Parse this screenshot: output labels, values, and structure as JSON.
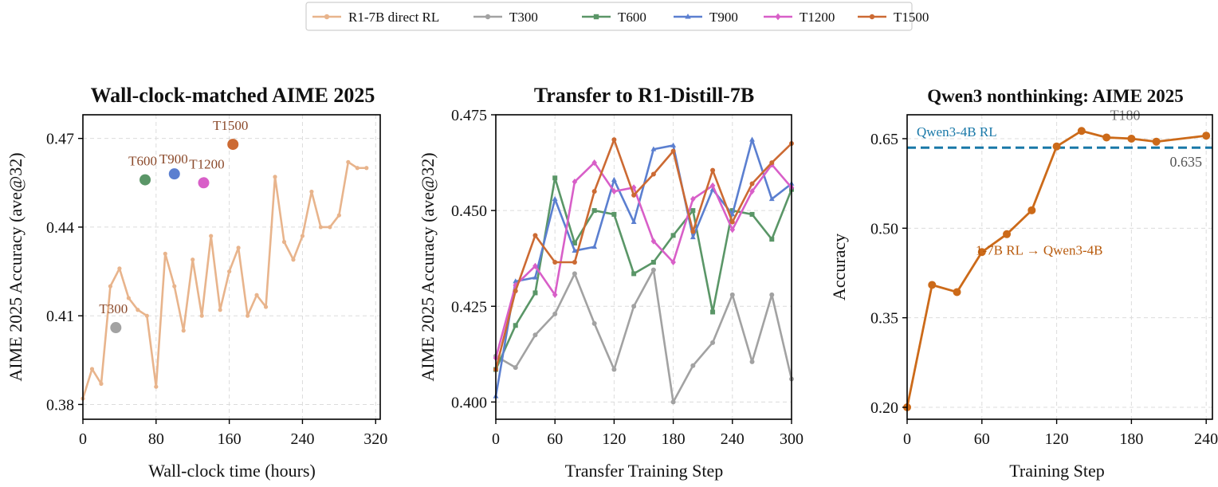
{
  "legend": {
    "items": [
      {
        "label": "R1-7B direct RL",
        "color": "#E8B48C",
        "marker": "circle"
      },
      {
        "label": "T300",
        "color": "#A2A2A2",
        "marker": "circle"
      },
      {
        "label": "T600",
        "color": "#5A9667",
        "marker": "square"
      },
      {
        "label": "T900",
        "color": "#5B7FD0",
        "marker": "triangle"
      },
      {
        "label": "T1200",
        "color": "#D85FC8",
        "marker": "diamond"
      },
      {
        "label": "T1500",
        "color": "#CC6A33",
        "marker": "circle"
      }
    ]
  },
  "chart_data": [
    {
      "type": "scatter",
      "title": "Wall-clock-matched AIME 2025",
      "xlabel": "Wall-clock time (hours)",
      "ylabel": "AIME 2025 Accuracy (ave@32)",
      "xlim": [
        0,
        325
      ],
      "ylim": [
        0.375,
        0.478
      ],
      "xticks": [
        0,
        80,
        160,
        240,
        320
      ],
      "xtick_labels": [
        "0",
        "80",
        "160",
        "240",
        "320"
      ],
      "yticks": [
        0.38,
        0.41,
        0.44,
        0.47
      ],
      "ytick_labels": [
        "0.38",
        "0.41",
        "0.44",
        "0.47"
      ],
      "grid": true,
      "series": [
        {
          "name": "R1-7B direct RL",
          "color": "#E8B48C",
          "kind": "line",
          "x": [
            0,
            10,
            20,
            30,
            40,
            50,
            60,
            70,
            80,
            90,
            100,
            110,
            120,
            130,
            140,
            150,
            160,
            170,
            180,
            190,
            200,
            210,
            220,
            230,
            240,
            250,
            260,
            270,
            280,
            290,
            300,
            310
          ],
          "y": [
            0.382,
            0.392,
            0.387,
            0.42,
            0.426,
            0.416,
            0.412,
            0.41,
            0.386,
            0.431,
            0.42,
            0.405,
            0.429,
            0.41,
            0.437,
            0.412,
            0.425,
            0.433,
            0.41,
            0.417,
            0.413,
            0.457,
            0.435,
            0.429,
            0.437,
            0.452,
            0.44,
            0.44,
            0.444,
            0.462,
            0.46,
            0.46
          ]
        }
      ],
      "points": [
        {
          "label": "T300",
          "x": 36,
          "y": 0.406,
          "color": "#A2A2A2",
          "label_color": "#8B4A2B"
        },
        {
          "label": "T600",
          "x": 68,
          "y": 0.456,
          "color": "#5A9667",
          "label_color": "#8B4A2B"
        },
        {
          "label": "T900",
          "x": 100,
          "y": 0.458,
          "color": "#5B7FD0",
          "label_color": "#8B4A2B"
        },
        {
          "label": "T1200",
          "x": 132,
          "y": 0.455,
          "color": "#D85FC8",
          "label_color": "#8B4A2B"
        },
        {
          "label": "T1500",
          "x": 164,
          "y": 0.468,
          "color": "#CC6A33",
          "label_color": "#8B4A2B"
        }
      ]
    },
    {
      "type": "line",
      "title": "Transfer to R1-Distill-7B",
      "xlabel": "Transfer Training Step",
      "ylabel": "AIME 2025 Accuracy (ave@32)",
      "xlim": [
        0,
        300
      ],
      "ylim": [
        0.3955,
        0.475
      ],
      "xticks": [
        0,
        60,
        120,
        180,
        240,
        300
      ],
      "xtick_labels": [
        "0",
        "60",
        "120",
        "180",
        "240",
        "300"
      ],
      "yticks": [
        0.4,
        0.425,
        0.45,
        0.475
      ],
      "ytick_labels": [
        "0.400",
        "0.425",
        "0.450",
        "0.475"
      ],
      "grid": true,
      "x": [
        0,
        20,
        40,
        60,
        80,
        100,
        120,
        140,
        160,
        180,
        200,
        220,
        240,
        260,
        280,
        300
      ],
      "series": [
        {
          "name": "T300",
          "color": "#A2A2A2",
          "marker": "circle",
          "values": [
            0.412,
            0.409,
            0.4175,
            0.423,
            0.4335,
            0.4205,
            0.4085,
            0.425,
            0.4345,
            0.4,
            0.4095,
            0.4155,
            0.428,
            0.4105,
            0.428,
            0.406
          ]
        },
        {
          "name": "T600",
          "color": "#5A9667",
          "marker": "square",
          "values": [
            0.4085,
            0.42,
            0.4285,
            0.4585,
            0.4415,
            0.45,
            0.449,
            0.4335,
            0.4365,
            0.4435,
            0.45,
            0.4235,
            0.45,
            0.449,
            0.4425,
            0.4555
          ]
        },
        {
          "name": "T900",
          "color": "#5B7FD0",
          "marker": "triangle",
          "values": [
            0.4015,
            0.4315,
            0.4325,
            0.453,
            0.4395,
            0.4405,
            0.458,
            0.447,
            0.466,
            0.467,
            0.443,
            0.4555,
            0.449,
            0.4685,
            0.453,
            0.457
          ]
        },
        {
          "name": "T1200",
          "color": "#D85FC8",
          "marker": "diamond",
          "values": [
            0.4115,
            0.4305,
            0.4355,
            0.428,
            0.4575,
            0.4625,
            0.455,
            0.456,
            0.442,
            0.4365,
            0.453,
            0.4565,
            0.445,
            0.455,
            0.462,
            0.456
          ]
        },
        {
          "name": "T1500",
          "color": "#CC6A33",
          "marker": "circle",
          "values": [
            0.4085,
            0.429,
            0.4435,
            0.4365,
            0.4365,
            0.455,
            0.4685,
            0.454,
            0.4595,
            0.4655,
            0.4445,
            0.4605,
            0.447,
            0.457,
            0.4625,
            0.4675
          ]
        }
      ]
    },
    {
      "type": "line",
      "title": "Qwen3 nonthinking: AIME 2025",
      "xlabel": "Training Step",
      "ylabel": "Accuracy",
      "xlim": [
        0,
        245
      ],
      "ylim": [
        0.18,
        0.69
      ],
      "xticks": [
        0,
        60,
        120,
        180,
        240
      ],
      "xtick_labels": [
        "0",
        "60",
        "120",
        "180",
        "240"
      ],
      "yticks": [
        0.2,
        0.35,
        0.5,
        0.65
      ],
      "ytick_labels": [
        "0.20",
        "0.35",
        "0.50",
        "0.65"
      ],
      "grid": true,
      "series": [
        {
          "name": "T180",
          "color": "#CC6A19",
          "x": [
            0,
            20,
            40,
            60,
            80,
            100,
            120,
            140,
            160,
            180,
            200,
            240
          ],
          "values": [
            0.2,
            0.405,
            0.393,
            0.46,
            0.49,
            0.53,
            0.637,
            0.663,
            0.652,
            0.65,
            0.645,
            0.655
          ]
        }
      ],
      "hline": {
        "y": 0.635,
        "label": "Qwen3-4B RL",
        "value_label": "0.635",
        "color": "#1978A8"
      },
      "annotations": [
        {
          "text": "T180",
          "color": "#777777"
        },
        {
          "text": "R1-7B RL → Qwen3-4B",
          "display": "1-7B RL  →  Qwen3-4B",
          "color": "#B85A0C"
        }
      ]
    }
  ]
}
